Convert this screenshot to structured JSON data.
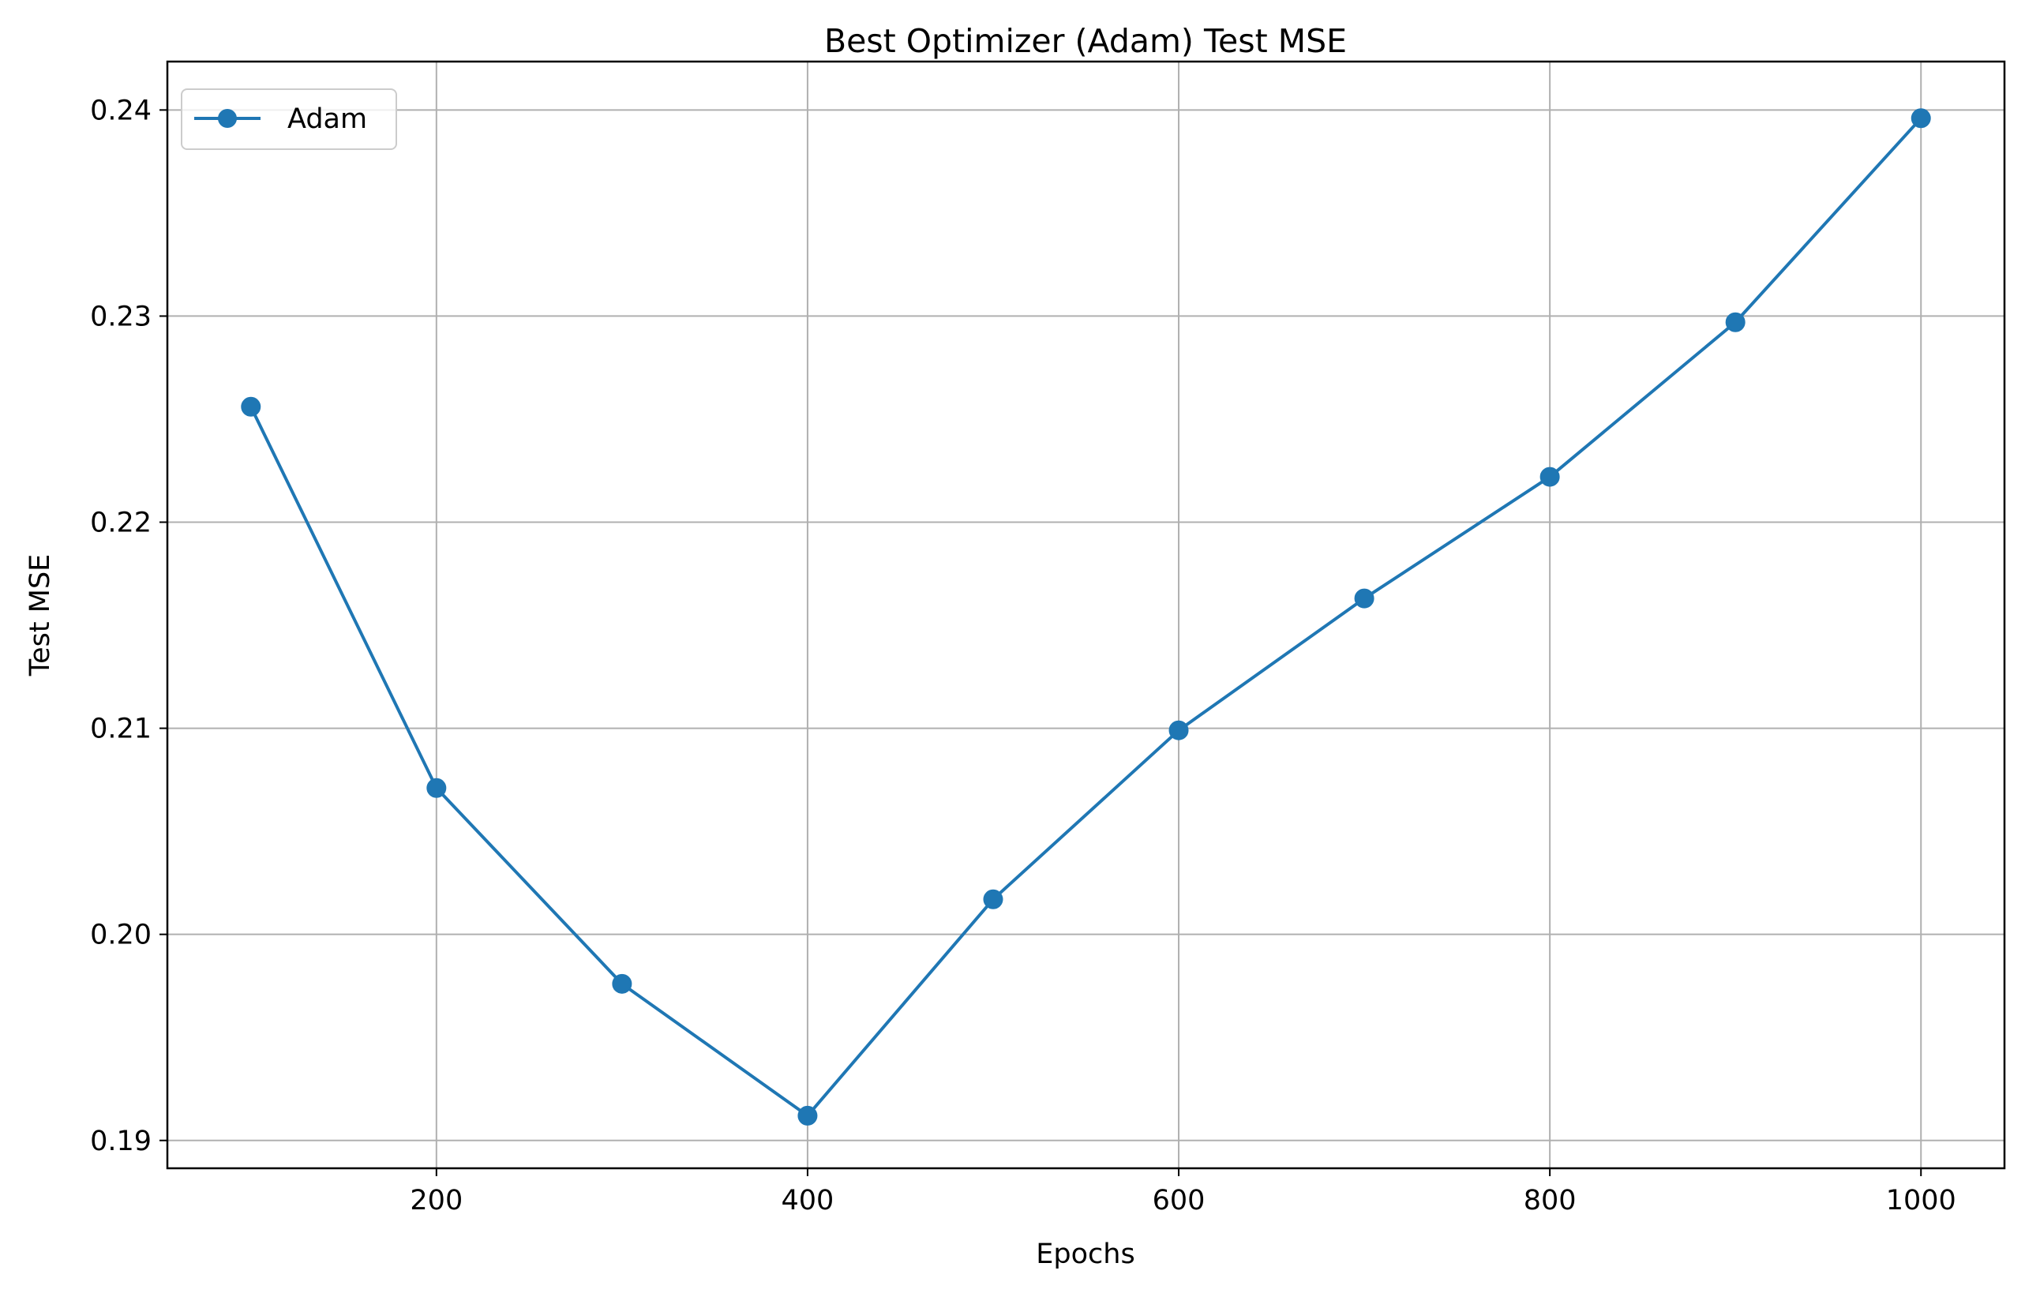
{
  "chart_data": {
    "type": "line",
    "title": "Best Optimizer (Adam) Test MSE",
    "xlabel": "Epochs",
    "ylabel": "Test MSE",
    "x": [
      100,
      200,
      300,
      400,
      500,
      600,
      700,
      800,
      900,
      1000
    ],
    "series": [
      {
        "name": "Adam",
        "color": "#1f77b4",
        "marker": "circle",
        "values": [
          0.2256,
          0.2071,
          0.1976,
          0.1912,
          0.2017,
          0.2099,
          0.2163,
          0.2222,
          0.2297,
          0.2396
        ]
      }
    ],
    "xlim": [
      55,
      1045
    ],
    "ylim": [
      0.18865,
      0.24235
    ],
    "xticks": [
      200,
      400,
      600,
      800,
      1000
    ],
    "xtick_labels": [
      "200",
      "400",
      "600",
      "800",
      "1000"
    ],
    "yticks": [
      0.19,
      0.2,
      0.21,
      0.22,
      0.23,
      0.24
    ],
    "ytick_labels": [
      "0.19",
      "0.20",
      "0.21",
      "0.22",
      "0.23",
      "0.24"
    ],
    "grid": true,
    "legend_position": "top-left"
  }
}
